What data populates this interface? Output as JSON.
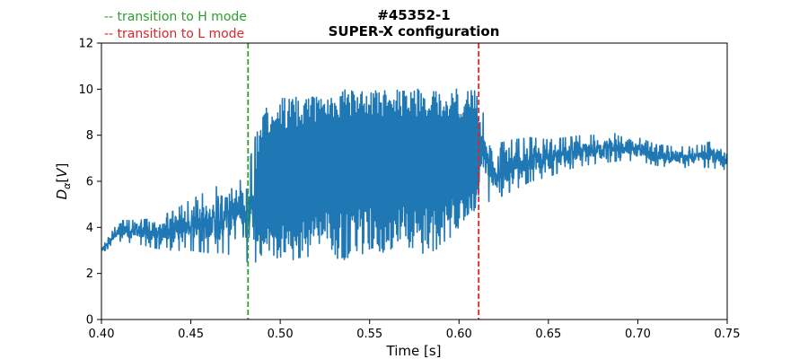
{
  "chart_data": {
    "type": "line",
    "title": [
      "#45352-1",
      "SUPER-X configuration"
    ],
    "xlabel": "Time [s]",
    "ylabel": "D_α [V]",
    "xlim": [
      0.4,
      0.75
    ],
    "ylim": [
      0,
      12
    ],
    "xticks": [
      "0.40",
      "0.45",
      "0.50",
      "0.55",
      "0.60",
      "0.65",
      "0.70",
      "0.75"
    ],
    "yticks": [
      "0",
      "2",
      "4",
      "6",
      "8",
      "10",
      "12"
    ],
    "grid": false,
    "series": [
      {
        "color": "#1f77b4",
        "x": [
          0.4,
          0.41,
          0.42,
          0.43,
          0.44,
          0.45,
          0.46,
          0.47,
          0.475,
          0.482,
          0.49,
          0.5,
          0.51,
          0.52,
          0.53,
          0.54,
          0.55,
          0.56,
          0.57,
          0.58,
          0.59,
          0.6,
          0.605,
          0.611,
          0.62,
          0.63,
          0.64,
          0.65,
          0.66,
          0.67,
          0.68,
          0.69,
          0.7,
          0.71,
          0.72,
          0.73,
          0.74,
          0.75
        ],
        "y_mean": [
          3.0,
          3.9,
          3.9,
          3.8,
          3.9,
          4.0,
          4.2,
          4.4,
          4.5,
          4.5,
          5.0,
          5.5,
          5.8,
          6.0,
          6.2,
          6.3,
          6.4,
          6.4,
          6.4,
          6.4,
          6.4,
          6.4,
          6.3,
          6.3,
          6.0,
          6.3,
          6.6,
          6.8,
          7.0,
          7.2,
          7.3,
          7.4,
          7.4,
          7.2,
          7.0,
          7.0,
          7.1,
          6.9
        ],
        "y_min": [
          2.9,
          3.4,
          3.3,
          3.1,
          3.0,
          3.0,
          2.9,
          2.9,
          2.6,
          2.5,
          2.5,
          2.4,
          2.5,
          2.6,
          2.6,
          2.6,
          2.7,
          2.7,
          2.7,
          2.7,
          2.8,
          4.0,
          4.2,
          5.0,
          5.2,
          5.6,
          6.0,
          6.2,
          6.5,
          6.7,
          6.8,
          6.9,
          6.9,
          6.7,
          6.6,
          6.6,
          6.6,
          6.5
        ],
        "y_max": [
          3.1,
          4.3,
          4.3,
          4.4,
          4.7,
          5.2,
          5.6,
          6.0,
          6.6,
          6.6,
          9.2,
          9.6,
          9.7,
          9.9,
          10.0,
          10.0,
          10.0,
          10.0,
          10.0,
          10.0,
          10.0,
          10.0,
          10.0,
          10.0,
          7.6,
          7.8,
          7.9,
          7.8,
          7.9,
          8.0,
          8.0,
          8.1,
          7.9,
          7.6,
          7.5,
          7.5,
          7.7,
          7.4
        ]
      }
    ],
    "vlines": [
      {
        "x": 0.482,
        "color": "#2ca02c",
        "label": "-- transition to H mode"
      },
      {
        "x": 0.611,
        "color": "#d62728",
        "label": "-- transition to L mode"
      }
    ],
    "legend_placement": "top-left"
  }
}
